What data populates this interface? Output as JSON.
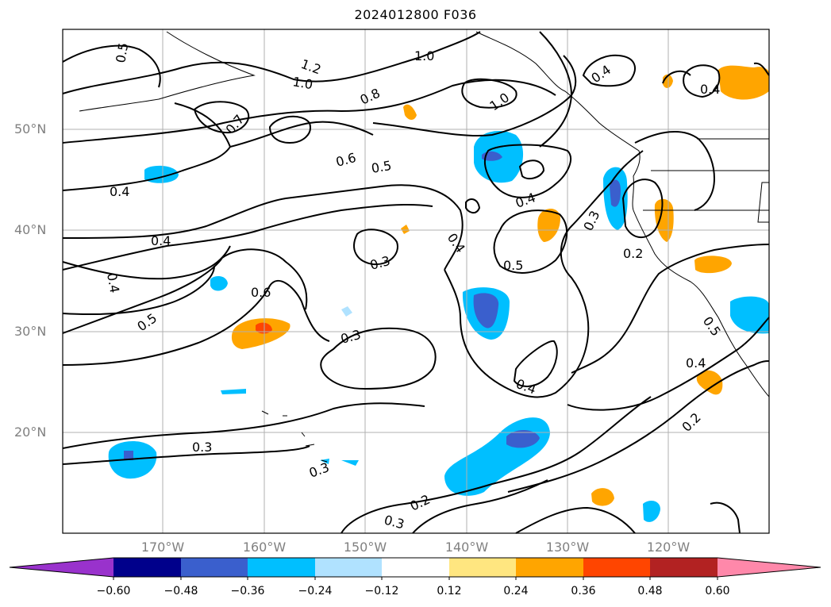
{
  "title": "2024012800 F036",
  "lat_labels": [
    "50°N",
    "40°N",
    "30°N",
    "20°N"
  ],
  "lon_labels": [
    "170°W",
    "160°W",
    "150°W",
    "140°W",
    "130°W",
    "120°W"
  ],
  "contour_labels": [
    "0.5",
    "1.2",
    "1.0",
    "1.0",
    "0.8",
    "1.0",
    "0.4",
    "0.4",
    "0.7",
    "0.6",
    "0.5",
    "0.4",
    "0.4",
    "0.4",
    "0.3",
    "0.3",
    "0.2",
    "0.5",
    "0.6",
    "0.3",
    "0.4",
    "0.5",
    "0.5",
    "0.4",
    "0.4",
    "0.3",
    "0.3",
    "0.2",
    "0.3",
    "0.2",
    "0.4"
  ],
  "colorbar": {
    "ticks": [
      "−0.60",
      "−0.48",
      "−0.36",
      "−0.24",
      "−0.12",
      "0.12",
      "0.24",
      "0.36",
      "0.48",
      "0.60"
    ],
    "colors": [
      "#9932cc",
      "#00008b",
      "#3a5fcd",
      "#00bfff",
      "#b0e2ff",
      "#ffffff",
      "#ffe680",
      "#ffa500",
      "#ff4500",
      "#b22222",
      "#ff88aa"
    ]
  },
  "colors": {
    "contour": "#000000",
    "grid": "#b0b0b0",
    "axis_label": "#808080"
  }
}
